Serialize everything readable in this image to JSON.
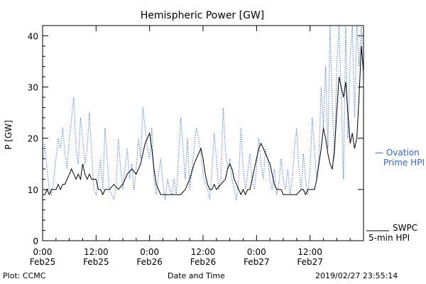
{
  "chart_data": {
    "type": "line",
    "title": "Hemispheric Power [GW]",
    "xlabel": "Date and Time",
    "ylabel": "P [GW]",
    "ylim": [
      0,
      42
    ],
    "xlim_hours": [
      0,
      72
    ],
    "yticks": [
      0,
      10,
      20,
      30,
      40
    ],
    "xticks": [
      {
        "hour": 0,
        "line1": "0:00",
        "line2": "Feb25"
      },
      {
        "hour": 12,
        "line1": "12:00",
        "line2": "Feb25"
      },
      {
        "hour": 24,
        "line1": "0:00",
        "line2": "Feb26"
      },
      {
        "hour": 36,
        "line1": "12:00",
        "line2": "Feb26"
      },
      {
        "hour": 48,
        "line1": "0:00",
        "line2": "Feb27"
      },
      {
        "hour": 60,
        "line1": "12:00",
        "line2": "Feb27"
      }
    ],
    "series": [
      {
        "name": "SWPC 5-min HPI",
        "legend_line1": "SWPC",
        "legend_line2": "5-min HPI",
        "color": "#000000",
        "style": "solid",
        "points": [
          [
            0,
            9
          ],
          [
            0.5,
            9
          ],
          [
            1,
            10
          ],
          [
            1.5,
            9
          ],
          [
            2,
            10
          ],
          [
            2.5,
            10
          ],
          [
            3,
            10
          ],
          [
            3.5,
            11
          ],
          [
            4,
            10
          ],
          [
            4.5,
            11
          ],
          [
            5,
            11
          ],
          [
            5.5,
            12
          ],
          [
            6,
            13
          ],
          [
            6.5,
            14
          ],
          [
            7,
            13
          ],
          [
            7.5,
            12
          ],
          [
            8,
            13
          ],
          [
            8.5,
            12
          ],
          [
            9,
            15
          ],
          [
            9.5,
            13
          ],
          [
            10,
            12
          ],
          [
            10.5,
            13
          ],
          [
            11,
            12
          ],
          [
            12,
            12
          ],
          [
            12.5,
            10
          ],
          [
            13,
            10
          ],
          [
            13.5,
            9
          ],
          [
            14,
            10
          ],
          [
            15,
            10
          ],
          [
            16,
            11
          ],
          [
            17,
            10
          ],
          [
            18,
            11
          ],
          [
            18.5,
            12
          ],
          [
            19,
            13
          ],
          [
            20,
            14
          ],
          [
            21,
            13
          ],
          [
            22,
            15
          ],
          [
            23,
            19
          ],
          [
            23.5,
            20
          ],
          [
            24,
            21
          ],
          [
            24.5,
            18
          ],
          [
            25,
            14
          ],
          [
            25.5,
            11
          ],
          [
            26,
            10
          ],
          [
            26.5,
            9
          ],
          [
            27,
            9
          ],
          [
            28,
            9
          ],
          [
            29,
            9
          ],
          [
            30,
            9
          ],
          [
            31,
            9
          ],
          [
            32,
            10
          ],
          [
            33,
            12
          ],
          [
            34,
            15
          ],
          [
            35,
            17
          ],
          [
            35.5,
            18
          ],
          [
            36,
            16
          ],
          [
            36.5,
            13
          ],
          [
            37,
            11
          ],
          [
            37.5,
            10
          ],
          [
            38,
            10
          ],
          [
            38.5,
            11
          ],
          [
            39,
            10
          ],
          [
            40,
            11
          ],
          [
            41,
            12
          ],
          [
            41.5,
            14
          ],
          [
            42,
            15
          ],
          [
            42.5,
            14
          ],
          [
            43,
            12
          ],
          [
            43.5,
            11
          ],
          [
            44,
            10
          ],
          [
            44.5,
            9
          ],
          [
            45,
            10
          ],
          [
            45.5,
            9
          ],
          [
            46,
            10
          ],
          [
            46.5,
            10
          ],
          [
            47,
            12
          ],
          [
            47.5,
            14
          ],
          [
            48,
            16
          ],
          [
            48.5,
            18
          ],
          [
            49,
            19
          ],
          [
            49.5,
            18
          ],
          [
            50,
            17
          ],
          [
            51,
            15
          ],
          [
            51.5,
            13
          ],
          [
            52,
            11
          ],
          [
            52.5,
            10
          ],
          [
            53,
            10
          ],
          [
            53.5,
            10
          ],
          [
            54,
            9
          ],
          [
            55,
            9
          ],
          [
            56,
            9
          ],
          [
            57,
            9
          ],
          [
            58,
            10
          ],
          [
            58.5,
            10
          ],
          [
            59,
            9
          ],
          [
            59.5,
            10
          ],
          [
            60,
            10
          ],
          [
            61,
            10
          ],
          [
            61.5,
            12
          ],
          [
            62,
            15
          ],
          [
            62.5,
            18
          ],
          [
            63,
            22
          ],
          [
            63.5,
            20
          ],
          [
            64,
            17
          ],
          [
            64.5,
            15
          ],
          [
            65,
            14
          ],
          [
            65.5,
            18
          ],
          [
            66,
            25
          ],
          [
            66.5,
            32
          ],
          [
            67,
            30
          ],
          [
            67.5,
            28
          ],
          [
            68,
            31
          ],
          [
            68.5,
            25
          ],
          [
            69,
            19
          ],
          [
            69.5,
            21
          ],
          [
            70,
            18
          ],
          [
            70.5,
            20
          ],
          [
            71,
            28
          ],
          [
            71.5,
            38
          ],
          [
            72,
            33
          ]
        ]
      },
      {
        "name": "Ovation Prime HPI",
        "legend_line1": "— Ovation",
        "legend_line2": "Prime HPI",
        "color": "#3366cc",
        "style": "dotted",
        "points": [
          [
            0,
            15
          ],
          [
            0.5,
            19
          ],
          [
            1,
            14
          ],
          [
            1.5,
            10
          ],
          [
            2,
            9
          ],
          [
            2.5,
            12
          ],
          [
            3,
            16
          ],
          [
            3.5,
            20
          ],
          [
            4,
            18
          ],
          [
            4.5,
            22
          ],
          [
            5,
            17
          ],
          [
            5.5,
            14
          ],
          [
            6,
            20
          ],
          [
            6.5,
            24
          ],
          [
            7,
            28
          ],
          [
            7.5,
            18
          ],
          [
            8,
            15
          ],
          [
            8.5,
            24
          ],
          [
            9,
            20
          ],
          [
            9.5,
            15
          ],
          [
            10,
            18
          ],
          [
            10.5,
            25
          ],
          [
            11,
            17
          ],
          [
            11.5,
            10
          ],
          [
            12,
            9
          ],
          [
            12.5,
            12
          ],
          [
            13,
            16
          ],
          [
            13.5,
            10
          ],
          [
            14,
            22
          ],
          [
            14.5,
            16
          ],
          [
            15,
            10
          ],
          [
            15.5,
            9
          ],
          [
            16,
            8
          ],
          [
            16.5,
            11
          ],
          [
            17,
            20
          ],
          [
            17.5,
            14
          ],
          [
            18,
            10
          ],
          [
            18.5,
            14
          ],
          [
            19,
            18
          ],
          [
            19.5,
            12
          ],
          [
            20,
            15
          ],
          [
            20.5,
            10
          ],
          [
            21,
            14
          ],
          [
            21.5,
            20
          ],
          [
            22,
            16
          ],
          [
            22.5,
            26
          ],
          [
            23,
            22
          ],
          [
            23.5,
            18
          ],
          [
            24,
            16
          ],
          [
            24.5,
            22
          ],
          [
            25,
            12
          ],
          [
            25.5,
            9
          ],
          [
            26,
            13
          ],
          [
            26.5,
            16
          ],
          [
            27,
            11
          ],
          [
            27.5,
            8
          ],
          [
            28,
            12
          ],
          [
            28.5,
            10
          ],
          [
            29,
            9
          ],
          [
            29.5,
            12
          ],
          [
            30,
            9
          ],
          [
            30.5,
            16
          ],
          [
            31,
            24
          ],
          [
            31.5,
            18
          ],
          [
            32,
            12
          ],
          [
            32.5,
            20
          ],
          [
            33,
            10
          ],
          [
            33.5,
            14
          ],
          [
            34,
            18
          ],
          [
            34.5,
            22
          ],
          [
            35,
            20
          ],
          [
            35.5,
            17
          ],
          [
            36,
            13
          ],
          [
            36.5,
            11
          ],
          [
            37,
            10
          ],
          [
            37.5,
            8
          ],
          [
            38,
            14
          ],
          [
            38.5,
            21
          ],
          [
            39,
            16
          ],
          [
            39.5,
            10
          ],
          [
            40,
            12
          ],
          [
            40.5,
            26
          ],
          [
            41,
            18
          ],
          [
            41.5,
            14
          ],
          [
            42,
            16
          ],
          [
            42.5,
            12
          ],
          [
            43,
            10
          ],
          [
            43.5,
            8
          ],
          [
            44,
            12
          ],
          [
            44.5,
            22
          ],
          [
            45,
            14
          ],
          [
            45.5,
            10
          ],
          [
            46,
            13
          ],
          [
            46.5,
            17
          ],
          [
            47,
            12
          ],
          [
            47.5,
            10
          ],
          [
            48,
            14
          ],
          [
            48.5,
            20
          ],
          [
            49,
            15
          ],
          [
            49.5,
            12
          ],
          [
            50,
            18
          ],
          [
            50.5,
            16
          ],
          [
            51,
            12
          ],
          [
            51.5,
            10
          ],
          [
            52,
            14
          ],
          [
            52.5,
            9
          ],
          [
            53,
            11
          ],
          [
            53.5,
            16
          ],
          [
            54,
            12
          ],
          [
            54.5,
            10
          ],
          [
            55,
            14
          ],
          [
            55.5,
            9
          ],
          [
            56,
            12
          ],
          [
            56.5,
            18
          ],
          [
            57,
            22
          ],
          [
            57.5,
            14
          ],
          [
            58,
            10
          ],
          [
            58.5,
            17
          ],
          [
            59,
            12
          ],
          [
            59.5,
            9
          ],
          [
            60,
            14
          ],
          [
            60.5,
            24
          ],
          [
            61,
            18
          ],
          [
            61.5,
            12
          ],
          [
            62,
            16
          ],
          [
            62.5,
            30
          ],
          [
            63,
            22
          ],
          [
            63.5,
            34
          ],
          [
            64,
            18
          ],
          [
            64.5,
            42
          ],
          [
            65,
            26
          ],
          [
            65.5,
            16
          ],
          [
            66,
            34
          ],
          [
            66.5,
            42
          ],
          [
            67,
            28
          ],
          [
            67.5,
            12
          ],
          [
            68,
            42
          ],
          [
            68.5,
            20
          ],
          [
            69,
            36
          ],
          [
            69.5,
            42
          ],
          [
            70,
            24
          ],
          [
            70.5,
            42
          ],
          [
            71,
            34
          ],
          [
            71.5,
            42
          ],
          [
            72,
            30
          ]
        ]
      }
    ]
  },
  "footer": {
    "left": "Plot: CCMC",
    "center": "Date and Time",
    "right": "2019/02/27 23:55:14"
  }
}
